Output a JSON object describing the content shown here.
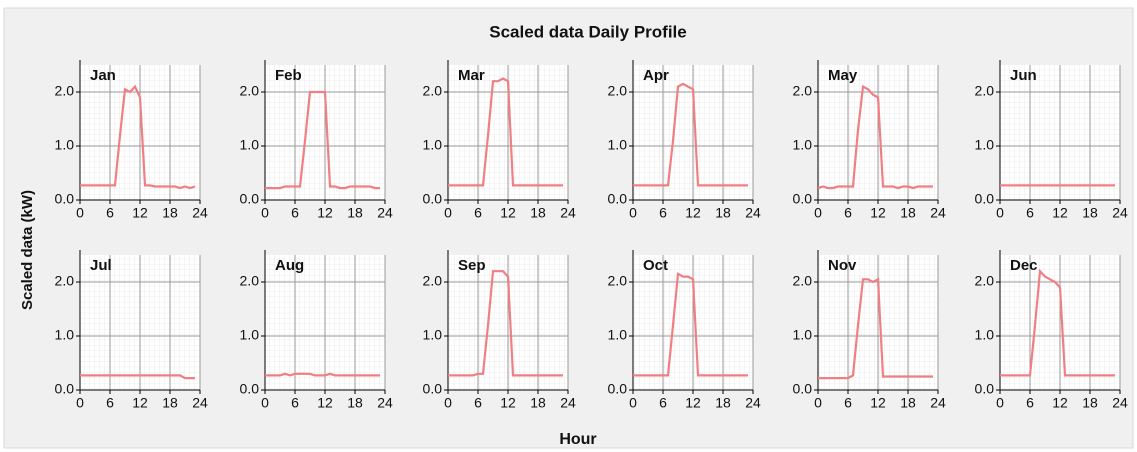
{
  "title": "Scaled data Daily Profile",
  "xlabel": "Hour",
  "ylabel": "Scaled data (kW)",
  "chart_data": [
    {
      "type": "line",
      "title": "Jan",
      "color": "#f07f84",
      "x": [
        0,
        1,
        2,
        3,
        4,
        5,
        6,
        7,
        8,
        9,
        10,
        11,
        12,
        13,
        14,
        15,
        16,
        17,
        18,
        19,
        20,
        21,
        22,
        23
      ],
      "values": [
        0.27,
        0.27,
        0.27,
        0.27,
        0.27,
        0.27,
        0.27,
        0.27,
        1.2,
        2.05,
        2.0,
        2.1,
        1.9,
        0.27,
        0.27,
        0.25,
        0.25,
        0.25,
        0.25,
        0.25,
        0.22,
        0.25,
        0.22,
        0.25
      ],
      "xlim": [
        0,
        24
      ],
      "ylim": [
        0,
        2.5
      ],
      "xticks": [
        0,
        6,
        12,
        18,
        24
      ],
      "yticks": [
        {
          "value": 0,
          "label": "0.0"
        },
        {
          "value": 1,
          "label": "1.0"
        },
        {
          "value": 2,
          "label": "2.0"
        }
      ],
      "grid": true
    },
    {
      "type": "line",
      "title": "Feb",
      "color": "#f07f84",
      "x": [
        0,
        1,
        2,
        3,
        4,
        5,
        6,
        7,
        8,
        9,
        10,
        11,
        12,
        13,
        14,
        15,
        16,
        17,
        18,
        19,
        20,
        21,
        22,
        23
      ],
      "values": [
        0.22,
        0.22,
        0.22,
        0.22,
        0.25,
        0.25,
        0.25,
        0.25,
        1.1,
        2.0,
        2.0,
        2.0,
        2.0,
        0.25,
        0.25,
        0.22,
        0.22,
        0.25,
        0.25,
        0.25,
        0.25,
        0.25,
        0.22,
        0.22
      ],
      "xlim": [
        0,
        24
      ],
      "ylim": [
        0,
        2.5
      ],
      "xticks": [
        0,
        6,
        12,
        18,
        24
      ],
      "yticks": [
        {
          "value": 0,
          "label": "0.0"
        },
        {
          "value": 1,
          "label": "1.0"
        },
        {
          "value": 2,
          "label": "2.0"
        }
      ],
      "grid": true
    },
    {
      "type": "line",
      "title": "Mar",
      "color": "#f07f84",
      "x": [
        0,
        1,
        2,
        3,
        4,
        5,
        6,
        7,
        8,
        9,
        10,
        11,
        12,
        13,
        14,
        15,
        16,
        17,
        18,
        19,
        20,
        21,
        22,
        23
      ],
      "values": [
        0.27,
        0.27,
        0.27,
        0.27,
        0.27,
        0.27,
        0.27,
        0.27,
        1.2,
        2.2,
        2.2,
        2.25,
        2.2,
        0.27,
        0.27,
        0.27,
        0.27,
        0.27,
        0.27,
        0.27,
        0.27,
        0.27,
        0.27,
        0.27
      ],
      "xlim": [
        0,
        24
      ],
      "ylim": [
        0,
        2.5
      ],
      "xticks": [
        0,
        6,
        12,
        18,
        24
      ],
      "yticks": [
        {
          "value": 0,
          "label": "0.0"
        },
        {
          "value": 1,
          "label": "1.0"
        },
        {
          "value": 2,
          "label": "2.0"
        }
      ],
      "grid": true
    },
    {
      "type": "line",
      "title": "Apr",
      "color": "#f07f84",
      "x": [
        0,
        1,
        2,
        3,
        4,
        5,
        6,
        7,
        8,
        9,
        10,
        11,
        12,
        13,
        14,
        15,
        16,
        17,
        18,
        19,
        20,
        21,
        22,
        23
      ],
      "values": [
        0.27,
        0.27,
        0.27,
        0.27,
        0.27,
        0.27,
        0.27,
        0.27,
        1.1,
        2.1,
        2.15,
        2.1,
        2.05,
        0.27,
        0.27,
        0.27,
        0.27,
        0.27,
        0.27,
        0.27,
        0.27,
        0.27,
        0.27,
        0.27
      ],
      "xlim": [
        0,
        24
      ],
      "ylim": [
        0,
        2.5
      ],
      "xticks": [
        0,
        6,
        12,
        18,
        24
      ],
      "yticks": [
        {
          "value": 0,
          "label": "0.0"
        },
        {
          "value": 1,
          "label": "1.0"
        },
        {
          "value": 2,
          "label": "2.0"
        }
      ],
      "grid": true
    },
    {
      "type": "line",
      "title": "May",
      "color": "#f07f84",
      "x": [
        0,
        1,
        2,
        3,
        4,
        5,
        6,
        7,
        8,
        9,
        10,
        11,
        12,
        13,
        14,
        15,
        16,
        17,
        18,
        19,
        20,
        21,
        22,
        23
      ],
      "values": [
        0.22,
        0.25,
        0.22,
        0.22,
        0.25,
        0.25,
        0.25,
        0.25,
        1.3,
        2.1,
        2.05,
        1.95,
        1.9,
        0.25,
        0.25,
        0.25,
        0.22,
        0.25,
        0.25,
        0.22,
        0.25,
        0.25,
        0.25,
        0.25
      ],
      "xlim": [
        0,
        24
      ],
      "ylim": [
        0,
        2.5
      ],
      "xticks": [
        0,
        6,
        12,
        18,
        24
      ],
      "yticks": [
        {
          "value": 0,
          "label": "0.0"
        },
        {
          "value": 1,
          "label": "1.0"
        },
        {
          "value": 2,
          "label": "2.0"
        }
      ],
      "grid": true
    },
    {
      "type": "line",
      "title": "Jun",
      "color": "#f07f84",
      "x": [
        0,
        1,
        2,
        3,
        4,
        5,
        6,
        7,
        8,
        9,
        10,
        11,
        12,
        13,
        14,
        15,
        16,
        17,
        18,
        19,
        20,
        21,
        22,
        23
      ],
      "values": [
        0.27,
        0.27,
        0.27,
        0.27,
        0.27,
        0.27,
        0.27,
        0.27,
        0.27,
        0.27,
        0.27,
        0.27,
        0.27,
        0.27,
        0.27,
        0.27,
        0.27,
        0.27,
        0.27,
        0.27,
        0.27,
        0.27,
        0.27,
        0.27
      ],
      "xlim": [
        0,
        24
      ],
      "ylim": [
        0,
        2.5
      ],
      "xticks": [
        0,
        6,
        12,
        18,
        24
      ],
      "yticks": [
        {
          "value": 0,
          "label": "0.0"
        },
        {
          "value": 1,
          "label": "1.0"
        },
        {
          "value": 2,
          "label": "2.0"
        }
      ],
      "grid": true
    },
    {
      "type": "line",
      "title": "Jul",
      "color": "#f07f84",
      "x": [
        0,
        1,
        2,
        3,
        4,
        5,
        6,
        7,
        8,
        9,
        10,
        11,
        12,
        13,
        14,
        15,
        16,
        17,
        18,
        19,
        20,
        21,
        22,
        23
      ],
      "values": [
        0.27,
        0.27,
        0.27,
        0.27,
        0.27,
        0.27,
        0.27,
        0.27,
        0.27,
        0.27,
        0.27,
        0.27,
        0.27,
        0.27,
        0.27,
        0.27,
        0.27,
        0.27,
        0.27,
        0.27,
        0.27,
        0.22,
        0.22,
        0.22
      ],
      "xlim": [
        0,
        24
      ],
      "ylim": [
        0,
        2.5
      ],
      "xticks": [
        0,
        6,
        12,
        18,
        24
      ],
      "yticks": [
        {
          "value": 0,
          "label": "0.0"
        },
        {
          "value": 1,
          "label": "1.0"
        },
        {
          "value": 2,
          "label": "2.0"
        }
      ],
      "grid": true
    },
    {
      "type": "line",
      "title": "Aug",
      "color": "#f07f84",
      "x": [
        0,
        1,
        2,
        3,
        4,
        5,
        6,
        7,
        8,
        9,
        10,
        11,
        12,
        13,
        14,
        15,
        16,
        17,
        18,
        19,
        20,
        21,
        22,
        23
      ],
      "values": [
        0.27,
        0.27,
        0.27,
        0.27,
        0.3,
        0.27,
        0.3,
        0.3,
        0.3,
        0.3,
        0.27,
        0.27,
        0.27,
        0.3,
        0.27,
        0.27,
        0.27,
        0.27,
        0.27,
        0.27,
        0.27,
        0.27,
        0.27,
        0.27
      ],
      "xlim": [
        0,
        24
      ],
      "ylim": [
        0,
        2.5
      ],
      "xticks": [
        0,
        6,
        12,
        18,
        24
      ],
      "yticks": [
        {
          "value": 0,
          "label": "0.0"
        },
        {
          "value": 1,
          "label": "1.0"
        },
        {
          "value": 2,
          "label": "2.0"
        }
      ],
      "grid": true
    },
    {
      "type": "line",
      "title": "Sep",
      "color": "#f07f84",
      "x": [
        0,
        1,
        2,
        3,
        4,
        5,
        6,
        7,
        8,
        9,
        10,
        11,
        12,
        13,
        14,
        15,
        16,
        17,
        18,
        19,
        20,
        21,
        22,
        23
      ],
      "values": [
        0.27,
        0.27,
        0.27,
        0.27,
        0.27,
        0.27,
        0.3,
        0.3,
        1.2,
        2.2,
        2.2,
        2.2,
        2.1,
        0.27,
        0.27,
        0.27,
        0.27,
        0.27,
        0.27,
        0.27,
        0.27,
        0.27,
        0.27,
        0.27
      ],
      "xlim": [
        0,
        24
      ],
      "ylim": [
        0,
        2.5
      ],
      "xticks": [
        0,
        6,
        12,
        18,
        24
      ],
      "yticks": [
        {
          "value": 0,
          "label": "0.0"
        },
        {
          "value": 1,
          "label": "1.0"
        },
        {
          "value": 2,
          "label": "2.0"
        }
      ],
      "grid": true
    },
    {
      "type": "line",
      "title": "Oct",
      "color": "#f07f84",
      "x": [
        0,
        1,
        2,
        3,
        4,
        5,
        6,
        7,
        8,
        9,
        10,
        11,
        12,
        13,
        14,
        15,
        16,
        17,
        18,
        19,
        20,
        21,
        22,
        23
      ],
      "values": [
        0.27,
        0.27,
        0.27,
        0.27,
        0.27,
        0.27,
        0.27,
        0.27,
        1.2,
        2.15,
        2.1,
        2.1,
        2.05,
        0.27,
        0.27,
        0.27,
        0.27,
        0.27,
        0.27,
        0.27,
        0.27,
        0.27,
        0.27,
        0.27
      ],
      "xlim": [
        0,
        24
      ],
      "ylim": [
        0,
        2.5
      ],
      "xticks": [
        0,
        6,
        12,
        18,
        24
      ],
      "yticks": [
        {
          "value": 0,
          "label": "0.0"
        },
        {
          "value": 1,
          "label": "1.0"
        },
        {
          "value": 2,
          "label": "2.0"
        }
      ],
      "grid": true
    },
    {
      "type": "line",
      "title": "Nov",
      "color": "#f07f84",
      "x": [
        0,
        1,
        2,
        3,
        4,
        5,
        6,
        7,
        8,
        9,
        10,
        11,
        12,
        13,
        14,
        15,
        16,
        17,
        18,
        19,
        20,
        21,
        22,
        23
      ],
      "values": [
        0.22,
        0.22,
        0.22,
        0.22,
        0.22,
        0.22,
        0.22,
        0.27,
        1.2,
        2.05,
        2.05,
        2.0,
        2.05,
        0.25,
        0.25,
        0.25,
        0.25,
        0.25,
        0.25,
        0.25,
        0.25,
        0.25,
        0.25,
        0.25
      ],
      "xlim": [
        0,
        24
      ],
      "ylim": [
        0,
        2.5
      ],
      "xticks": [
        0,
        6,
        12,
        18,
        24
      ],
      "yticks": [
        {
          "value": 0,
          "label": "0.0"
        },
        {
          "value": 1,
          "label": "1.0"
        },
        {
          "value": 2,
          "label": "2.0"
        }
      ],
      "grid": true
    },
    {
      "type": "line",
      "title": "Dec",
      "color": "#f07f84",
      "x": [
        0,
        1,
        2,
        3,
        4,
        5,
        6,
        7,
        8,
        9,
        10,
        11,
        12,
        13,
        14,
        15,
        16,
        17,
        18,
        19,
        20,
        21,
        22,
        23
      ],
      "values": [
        0.27,
        0.27,
        0.27,
        0.27,
        0.27,
        0.27,
        0.27,
        1.2,
        2.2,
        2.1,
        2.05,
        2.0,
        1.9,
        0.27,
        0.27,
        0.27,
        0.27,
        0.27,
        0.27,
        0.27,
        0.27,
        0.27,
        0.27,
        0.27
      ],
      "xlim": [
        0,
        24
      ],
      "ylim": [
        0,
        2.5
      ],
      "xticks": [
        0,
        6,
        12,
        18,
        24
      ],
      "yticks": [
        {
          "value": 0,
          "label": "0.0"
        },
        {
          "value": 1,
          "label": "1.0"
        },
        {
          "value": 2,
          "label": "2.0"
        }
      ],
      "grid": true
    }
  ]
}
